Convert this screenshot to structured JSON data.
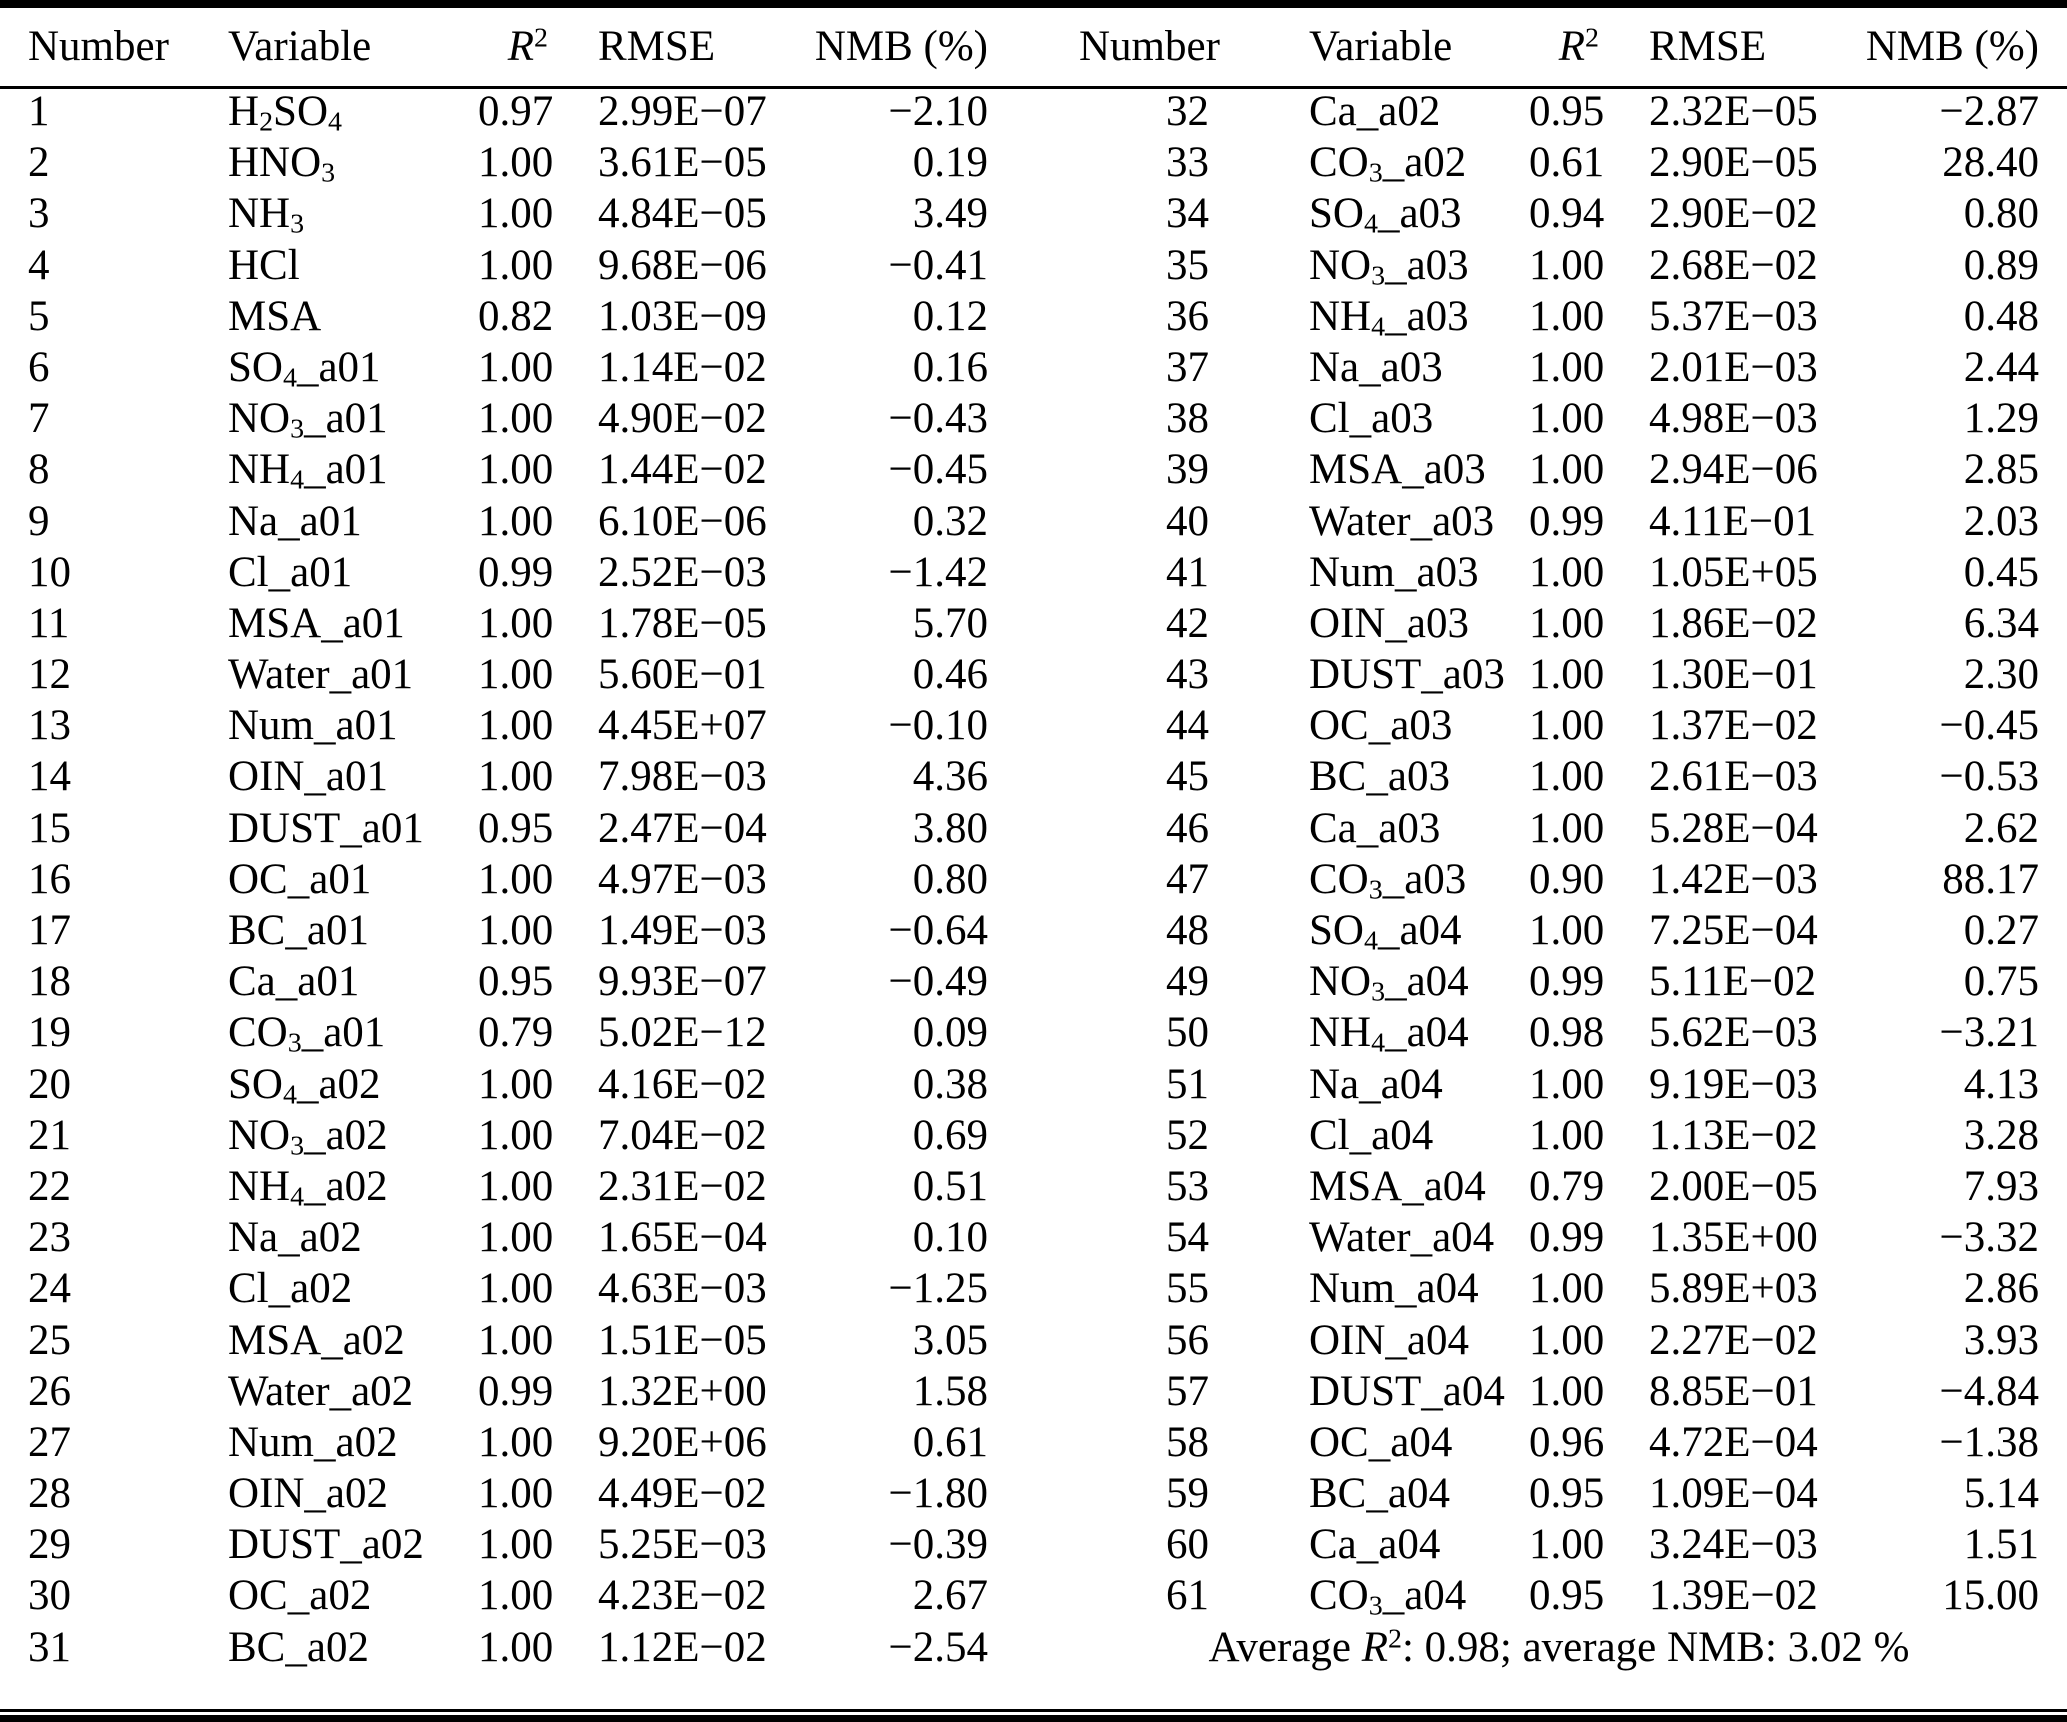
{
  "table": {
    "columns": [
      "Number",
      "Variable",
      "*R*^2^",
      "RMSE",
      "NMB (%)"
    ],
    "left_rows": [
      [
        "1",
        "H~2~SO~4~",
        "0.97",
        "2.99E−07",
        "−2.10"
      ],
      [
        "2",
        "HNO~3~",
        "1.00",
        "3.61E−05",
        "0.19"
      ],
      [
        "3",
        "NH~3~",
        "1.00",
        "4.84E−05",
        "3.49"
      ],
      [
        "4",
        "HCl",
        "1.00",
        "9.68E−06",
        "−0.41"
      ],
      [
        "5",
        "MSA",
        "0.82",
        "1.03E−09",
        "0.12"
      ],
      [
        "6",
        "SO~4~_a01",
        "1.00",
        "1.14E−02",
        "0.16"
      ],
      [
        "7",
        "NO~3~_a01",
        "1.00",
        "4.90E−02",
        "−0.43"
      ],
      [
        "8",
        "NH~4~_a01",
        "1.00",
        "1.44E−02",
        "−0.45"
      ],
      [
        "9",
        "Na_a01",
        "1.00",
        "6.10E−06",
        "0.32"
      ],
      [
        "10",
        "Cl_a01",
        "0.99",
        "2.52E−03",
        "−1.42"
      ],
      [
        "11",
        "MSA_a01",
        "1.00",
        "1.78E−05",
        "5.70"
      ],
      [
        "12",
        "Water_a01",
        "1.00",
        "5.60E−01",
        "0.46"
      ],
      [
        "13",
        "Num_a01",
        "1.00",
        "4.45E+07",
        "−0.10"
      ],
      [
        "14",
        "OIN_a01",
        "1.00",
        "7.98E−03",
        "4.36"
      ],
      [
        "15",
        "DUST_a01",
        "0.95",
        "2.47E−04",
        "3.80"
      ],
      [
        "16",
        "OC_a01",
        "1.00",
        "4.97E−03",
        "0.80"
      ],
      [
        "17",
        "BC_a01",
        "1.00",
        "1.49E−03",
        "−0.64"
      ],
      [
        "18",
        "Ca_a01",
        "0.95",
        "9.93E−07",
        "−0.49"
      ],
      [
        "19",
        "CO~3~_a01",
        "0.79",
        "5.02E−12",
        "0.09"
      ],
      [
        "20",
        "SO~4~_a02",
        "1.00",
        "4.16E−02",
        "0.38"
      ],
      [
        "21",
        "NO~3~_a02",
        "1.00",
        "7.04E−02",
        "0.69"
      ],
      [
        "22",
        "NH~4~_a02",
        "1.00",
        "2.31E−02",
        "0.51"
      ],
      [
        "23",
        "Na_a02",
        "1.00",
        "1.65E−04",
        "0.10"
      ],
      [
        "24",
        "Cl_a02",
        "1.00",
        "4.63E−03",
        "−1.25"
      ],
      [
        "25",
        "MSA_a02",
        "1.00",
        "1.51E−05",
        "3.05"
      ],
      [
        "26",
        "Water_a02",
        "0.99",
        "1.32E+00",
        "1.58"
      ],
      [
        "27",
        "Num_a02",
        "1.00",
        "9.20E+06",
        "0.61"
      ],
      [
        "28",
        "OIN_a02",
        "1.00",
        "4.49E−02",
        "−1.80"
      ],
      [
        "29",
        "DUST_a02",
        "1.00",
        "5.25E−03",
        "−0.39"
      ],
      [
        "30",
        "OC_a02",
        "1.00",
        "4.23E−02",
        "2.67"
      ],
      [
        "31",
        "BC_a02",
        "1.00",
        "1.12E−02",
        "−2.54"
      ]
    ],
    "right_rows": [
      [
        "32",
        "Ca_a02",
        "0.95",
        "2.32E−05",
        "−2.87"
      ],
      [
        "33",
        "CO~3~_a02",
        "0.61",
        "2.90E−05",
        "28.40"
      ],
      [
        "34",
        "SO~4~_a03",
        "0.94",
        "2.90E−02",
        "0.80"
      ],
      [
        "35",
        "NO~3~_a03",
        "1.00",
        "2.68E−02",
        "0.89"
      ],
      [
        "36",
        "NH~4~_a03",
        "1.00",
        "5.37E−03",
        "0.48"
      ],
      [
        "37",
        "Na_a03",
        "1.00",
        "2.01E−03",
        "2.44"
      ],
      [
        "38",
        "Cl_a03",
        "1.00",
        "4.98E−03",
        "1.29"
      ],
      [
        "39",
        "MSA_a03",
        "1.00",
        "2.94E−06",
        "2.85"
      ],
      [
        "40",
        "Water_a03",
        "0.99",
        "4.11E−01",
        "2.03"
      ],
      [
        "41",
        "Num_a03",
        "1.00",
        "1.05E+05",
        "0.45"
      ],
      [
        "42",
        "OIN_a03",
        "1.00",
        "1.86E−02",
        "6.34"
      ],
      [
        "43",
        "DUST_a03",
        "1.00",
        "1.30E−01",
        "2.30"
      ],
      [
        "44",
        "OC_a03",
        "1.00",
        "1.37E−02",
        "−0.45"
      ],
      [
        "45",
        "BC_a03",
        "1.00",
        "2.61E−03",
        "−0.53"
      ],
      [
        "46",
        "Ca_a03",
        "1.00",
        "5.28E−04",
        "2.62"
      ],
      [
        "47",
        "CO~3~_a03",
        "0.90",
        "1.42E−03",
        "88.17"
      ],
      [
        "48",
        "SO~4~_a04",
        "1.00",
        "7.25E−04",
        "0.27"
      ],
      [
        "49",
        "NO~3~_a04",
        "0.99",
        "5.11E−02",
        "0.75"
      ],
      [
        "50",
        "NH~4~_a04",
        "0.98",
        "5.62E−03",
        "−3.21"
      ],
      [
        "51",
        "Na_a04",
        "1.00",
        "9.19E−03",
        "4.13"
      ],
      [
        "52",
        "Cl_a04",
        "1.00",
        "1.13E−02",
        "3.28"
      ],
      [
        "53",
        "MSA_a04",
        "0.79",
        "2.00E−05",
        "7.93"
      ],
      [
        "54",
        "Water_a04",
        "0.99",
        "1.35E+00",
        "−3.32"
      ],
      [
        "55",
        "Num_a04",
        "1.00",
        "5.89E+03",
        "2.86"
      ],
      [
        "56",
        "OIN_a04",
        "1.00",
        "2.27E−02",
        "3.93"
      ],
      [
        "57",
        "DUST_a04",
        "1.00",
        "8.85E−01",
        "−4.84"
      ],
      [
        "58",
        "OC_a04",
        "0.96",
        "4.72E−04",
        "−1.38"
      ],
      [
        "59",
        "BC_a04",
        "0.95",
        "1.09E−04",
        "5.14"
      ],
      [
        "60",
        "Ca_a04",
        "1.00",
        "3.24E−03",
        "1.51"
      ],
      [
        "61",
        "CO~3~_a04",
        "0.95",
        "1.39E−02",
        "15.00"
      ]
    ],
    "footer": "Average *R*^2^: 0.98; average NMB: 3.02 %",
    "text_color": "#000000",
    "rule_color": "#000000"
  }
}
